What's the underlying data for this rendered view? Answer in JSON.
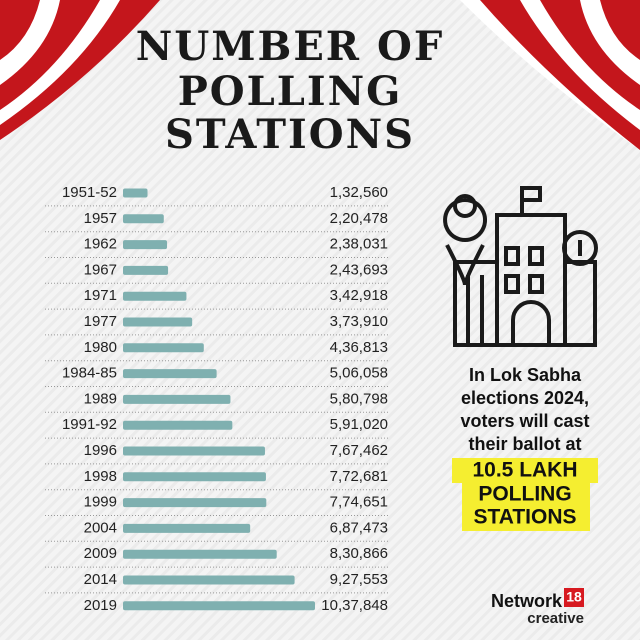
{
  "chart_data": {
    "type": "bar",
    "orientation": "horizontal",
    "title": [
      "NUMBER OF",
      "POLLING",
      "STATIONS"
    ],
    "categories": [
      "1951-52",
      "1957",
      "1962",
      "1967",
      "1971",
      "1977",
      "1980",
      "1984-85",
      "1989",
      "1991-92",
      "1996",
      "1998",
      "1999",
      "2004",
      "2009",
      "2014",
      "2019"
    ],
    "values": [
      132560,
      220478,
      238031,
      243693,
      342918,
      373910,
      436813,
      506058,
      580798,
      591020,
      767462,
      772681,
      774651,
      687473,
      830866,
      927553,
      1037848
    ],
    "value_labels": [
      "1,32,560",
      "2,20,478",
      "2,38,031",
      "2,43,693",
      "3,42,918",
      "3,73,910",
      "4,36,813",
      "5,06,058",
      "5,80,798",
      "5,91,020",
      "7,67,462",
      "7,72,681",
      "7,74,651",
      "6,87,473",
      "8,30,866",
      "9,27,553",
      "10,37,848"
    ],
    "color": "#7fb0b0"
  },
  "annotation": {
    "lines": [
      "In Lok Sabha",
      "elections 2024,",
      "voters will cast",
      "their ballot at"
    ],
    "highlight": [
      "10.5 LAKH",
      "POLLING",
      "STATIONS"
    ]
  },
  "logo": {
    "name": "Network",
    "number": "18",
    "sub": "creative"
  }
}
